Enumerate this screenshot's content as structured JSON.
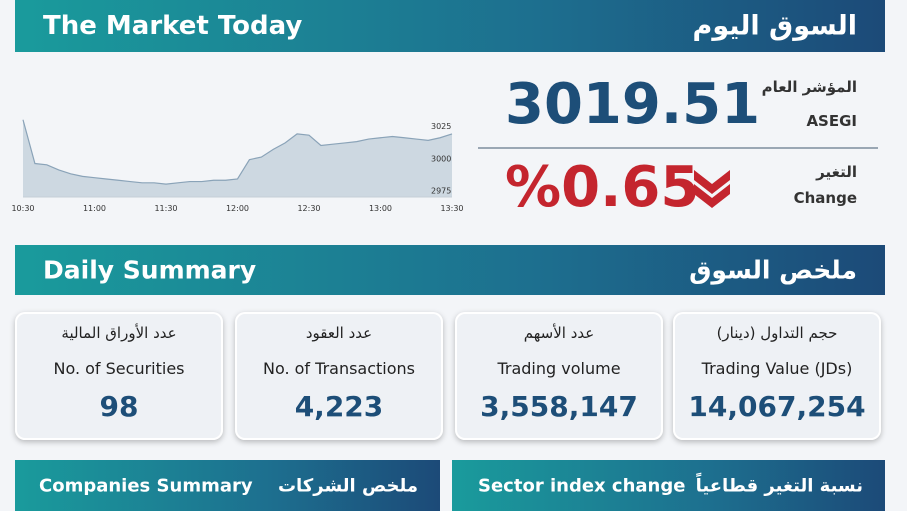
{
  "header": {
    "title_en": "The Market Today",
    "title_ar": "السوق اليوم"
  },
  "index": {
    "label_ar": "المؤشر العام",
    "label_en": "ASEGI",
    "value": "3019.51",
    "change_label_ar": "التغير",
    "change_label_en": "Change",
    "change": "%0.65"
  },
  "chart_data": {
    "type": "area",
    "x": [
      "10:30",
      "10:35",
      "10:40",
      "10:45",
      "10:50",
      "10:55",
      "11:00",
      "11:05",
      "11:10",
      "11:15",
      "11:20",
      "11:25",
      "11:30",
      "11:35",
      "11:40",
      "11:45",
      "11:50",
      "11:55",
      "12:00",
      "12:05",
      "12:10",
      "12:15",
      "12:20",
      "12:25",
      "12:30",
      "12:35",
      "12:40",
      "12:45",
      "12:50",
      "12:55",
      "13:00",
      "13:05",
      "13:10",
      "13:15",
      "13:20",
      "13:25",
      "13:30"
    ],
    "values": [
      3030,
      2996,
      2995,
      2991,
      2988,
      2986,
      2985,
      2984,
      2983,
      2982,
      2981,
      2981,
      2980,
      2981,
      2982,
      2982,
      2983,
      2983,
      2984,
      2999,
      3001,
      3007,
      3012,
      3019,
      3018,
      3010,
      3011,
      3012,
      3013,
      3015,
      3016,
      3017,
      3016,
      3015,
      3014,
      3016,
      3019
    ],
    "color": "#9fb6c6",
    "xticks": [
      "10:30",
      "11:00",
      "11:30",
      "12:00",
      "12:30",
      "13:00",
      "13:30"
    ],
    "ylim": [
      2970,
      3036
    ],
    "yticks": [
      2975,
      3000,
      3025
    ]
  },
  "daily": {
    "title_en": "Daily Summary",
    "title_ar": "ملخص السوق",
    "cards": [
      {
        "label_ar": "عدد الأوراق المالية",
        "label_en": "No. of Securities",
        "value": "98"
      },
      {
        "label_ar": "عدد العقود",
        "label_en": "No. of Transactions",
        "value": "4,223"
      },
      {
        "label_ar": "عدد الأسهم",
        "label_en": "Trading volume",
        "value": "3,558,147"
      },
      {
        "label_ar": "حجم التداول (دينار)",
        "label_en": "Trading Value (JDs)",
        "value": "14,067,254"
      }
    ]
  },
  "footer": {
    "left_en": "Companies Summary",
    "left_ar": "ملخص الشركات",
    "right_en": "Sector index change",
    "right_ar": "نسبة التغير قطاعياً"
  }
}
